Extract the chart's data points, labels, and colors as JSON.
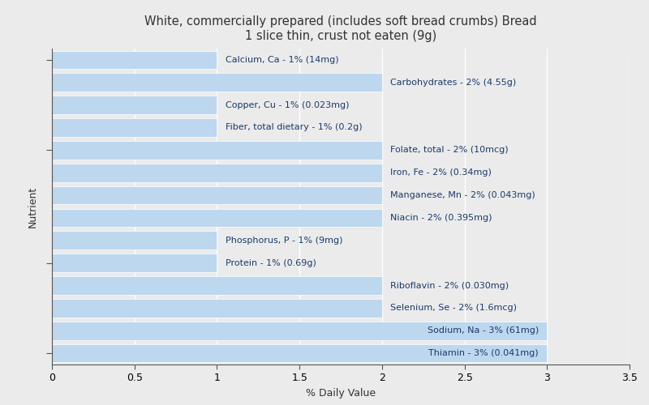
{
  "title": "White, commercially prepared (includes soft bread crumbs) Bread\n1 slice thin, crust not eaten (9g)",
  "xlabel": "% Daily Value",
  "ylabel": "Nutrient",
  "background_color": "#ebebeb",
  "bar_color": "#bdd7ee",
  "nutrients": [
    "Calcium, Ca - 1% (14mg)",
    "Carbohydrates - 2% (4.55g)",
    "Copper, Cu - 1% (0.023mg)",
    "Fiber, total dietary - 1% (0.2g)",
    "Folate, total - 2% (10mcg)",
    "Iron, Fe - 2% (0.34mg)",
    "Manganese, Mn - 2% (0.043mg)",
    "Niacin - 2% (0.395mg)",
    "Phosphorus, P - 1% (9mg)",
    "Protein - 1% (0.69g)",
    "Riboflavin - 2% (0.030mg)",
    "Selenium, Se - 2% (1.6mcg)",
    "Sodium, Na - 3% (61mg)",
    "Thiamin - 3% (0.041mg)"
  ],
  "values": [
    1,
    2,
    1,
    1,
    2,
    2,
    2,
    2,
    1,
    1,
    2,
    2,
    3,
    3
  ],
  "label_inside": [
    false,
    false,
    false,
    false,
    false,
    false,
    false,
    false,
    false,
    false,
    false,
    false,
    true,
    true
  ],
  "xlim": [
    0,
    3.5
  ],
  "xticks": [
    0,
    0.5,
    1,
    1.5,
    2,
    2.5,
    3,
    3.5
  ],
  "yticks": [
    0,
    4,
    9,
    13
  ],
  "title_fontsize": 10.5,
  "label_fontsize": 8,
  "axis_label_fontsize": 9,
  "tick_label_fontsize": 9,
  "text_color_outside": "#1a3a6b",
  "text_color_inside": "#1a3a6b",
  "bar_height": 0.82,
  "bar_edgecolor": "white",
  "bar_linewidth": 0.5,
  "spine_color": "#555555",
  "grid_color": "white",
  "grid_linewidth": 1.0
}
